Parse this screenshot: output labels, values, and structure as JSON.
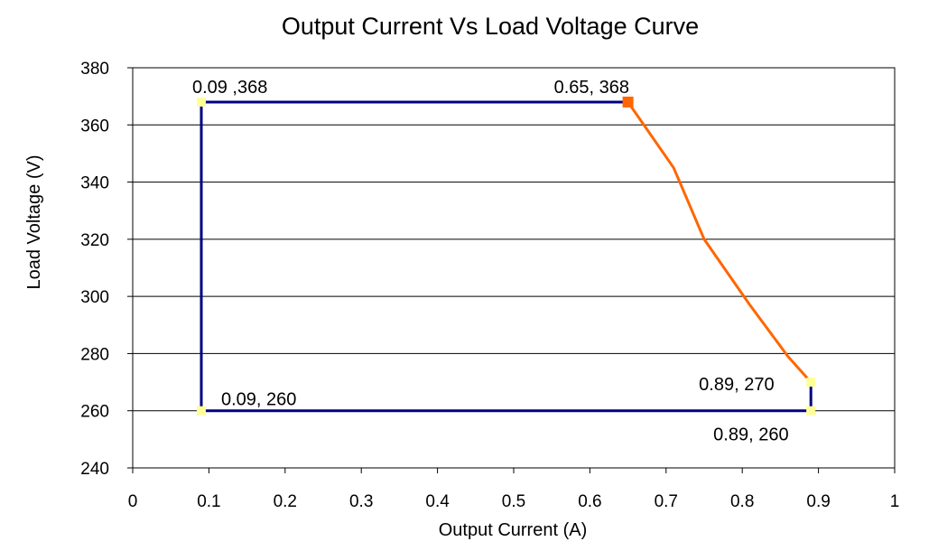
{
  "chart_data": {
    "type": "line",
    "title": "Output Current Vs Load Voltage Curve",
    "xlabel": "Output Current  (A)",
    "ylabel": "Load Voltage (V)",
    "xlim": [
      0,
      1
    ],
    "ylim": [
      240,
      380
    ],
    "xticks": [
      "0",
      "0.1",
      "0.2",
      "0.3",
      "0.4",
      "0.5",
      "0.6",
      "0.7",
      "0.8",
      "0.9",
      "1"
    ],
    "yticks": [
      "240",
      "260",
      "280",
      "300",
      "320",
      "340",
      "360",
      "380"
    ],
    "grid": "horizontal",
    "legend": "none",
    "series": [
      {
        "color": "#000080",
        "marker_color": "#ffff99",
        "points": [
          {
            "x": 0.65,
            "y": 368
          },
          {
            "x": 0.09,
            "y": 368
          },
          {
            "x": 0.09,
            "y": 260
          },
          {
            "x": 0.89,
            "y": 260
          },
          {
            "x": 0.89,
            "y": 270
          }
        ]
      },
      {
        "color": "#ff6600",
        "marker_color": "#ff6600",
        "points": [
          {
            "x": 0.65,
            "y": 368
          },
          {
            "x": 0.71,
            "y": 345
          },
          {
            "x": 0.75,
            "y": 320
          },
          {
            "x": 0.81,
            "y": 297
          },
          {
            "x": 0.86,
            "y": 279
          },
          {
            "x": 0.89,
            "y": 270
          }
        ]
      }
    ],
    "annotations": [
      {
        "text": "0.09 ,368",
        "x": 0.09,
        "y": 368
      },
      {
        "text": "0.65, 368",
        "x": 0.65,
        "y": 368
      },
      {
        "text": "0.09, 260",
        "x": 0.09,
        "y": 260
      },
      {
        "text": "0.89, 270",
        "x": 0.89,
        "y": 270
      },
      {
        "text": "0.89, 260",
        "x": 0.89,
        "y": 260
      }
    ]
  }
}
